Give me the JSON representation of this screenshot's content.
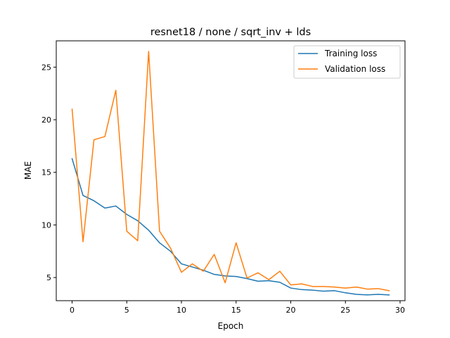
{
  "chart_data": {
    "type": "line",
    "title": "resnet18 / none / sqrt_inv + lds",
    "xlabel": "Epoch",
    "ylabel": "MAE",
    "xlim": [
      -1.45,
      30.45
    ],
    "ylim": [
      2.8,
      27.5
    ],
    "xticks": [
      0,
      5,
      10,
      15,
      20,
      25,
      30
    ],
    "yticks": [
      5,
      10,
      15,
      20,
      25
    ],
    "grid": false,
    "legend_position": "upper right",
    "x": [
      0,
      1,
      2,
      3,
      4,
      5,
      6,
      7,
      8,
      9,
      10,
      11,
      12,
      13,
      14,
      15,
      16,
      17,
      18,
      19,
      20,
      21,
      22,
      23,
      24,
      25,
      26,
      27,
      28,
      29
    ],
    "series": [
      {
        "name": "Training loss",
        "color": "#1f77b4",
        "values": [
          16.3,
          12.8,
          12.3,
          11.6,
          11.8,
          11.0,
          10.4,
          9.5,
          8.3,
          7.5,
          6.3,
          6.0,
          5.7,
          5.3,
          5.15,
          5.1,
          4.9,
          4.65,
          4.7,
          4.55,
          4.0,
          3.85,
          3.8,
          3.7,
          3.75,
          3.55,
          3.4,
          3.35,
          3.4,
          3.35
        ]
      },
      {
        "name": "Validation loss",
        "color": "#ff7f0e",
        "values": [
          21.0,
          8.4,
          18.1,
          18.4,
          22.8,
          9.4,
          8.5,
          26.5,
          9.4,
          7.8,
          5.5,
          6.3,
          5.6,
          7.2,
          4.5,
          8.3,
          4.95,
          5.45,
          4.8,
          5.6,
          4.3,
          4.4,
          4.15,
          4.15,
          4.1,
          4.0,
          4.1,
          3.9,
          3.95,
          3.75
        ]
      }
    ]
  }
}
